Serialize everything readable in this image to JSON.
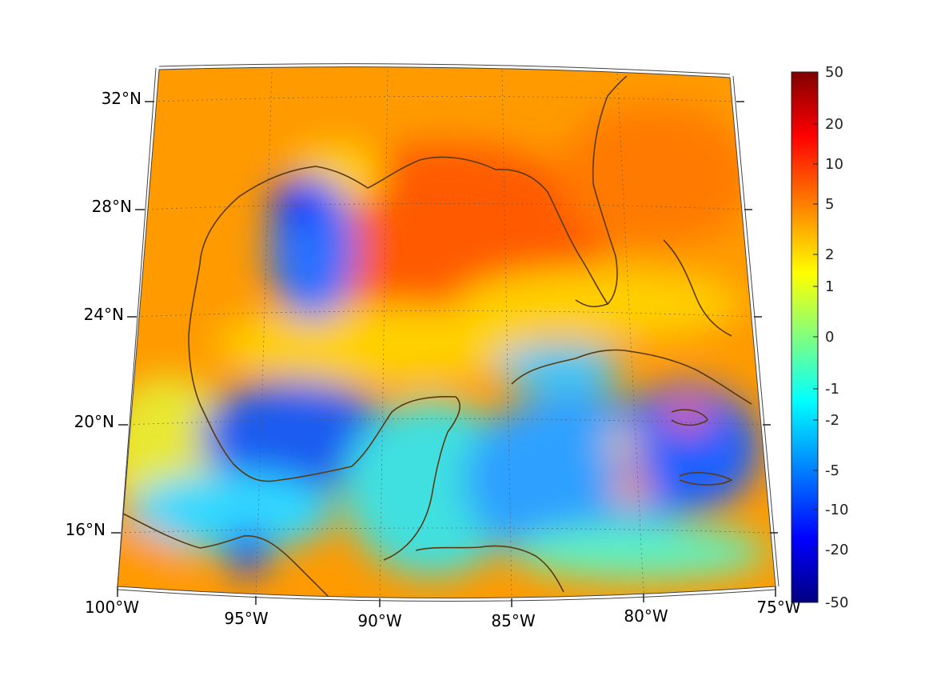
{
  "map": {
    "lon_labels": [
      "100°W",
      "95°W",
      "90°W",
      "85°W",
      "80°W",
      "75°W"
    ],
    "lat_labels": [
      "32°N",
      "28°N",
      "24°N",
      "20°N",
      "16°N"
    ],
    "extent": {
      "lon": [
        -100,
        -75
      ],
      "lat": [
        14,
        33
      ]
    },
    "graticule_style": "dotted",
    "coastline_color": "#5a3a10",
    "colormap": "jet"
  },
  "colorbar": {
    "ticks": [
      "50",
      "20",
      "10",
      "5",
      "2",
      "1",
      "0",
      "-1",
      "-2",
      "-5",
      "-10",
      "-20",
      "-50"
    ],
    "range": [
      -50,
      50
    ],
    "colors": [
      "#800000",
      "#ff0000",
      "#ff8000",
      "#ffff00",
      "#80ff80",
      "#00ffff",
      "#0080ff",
      "#0000ff",
      "#000080"
    ]
  }
}
